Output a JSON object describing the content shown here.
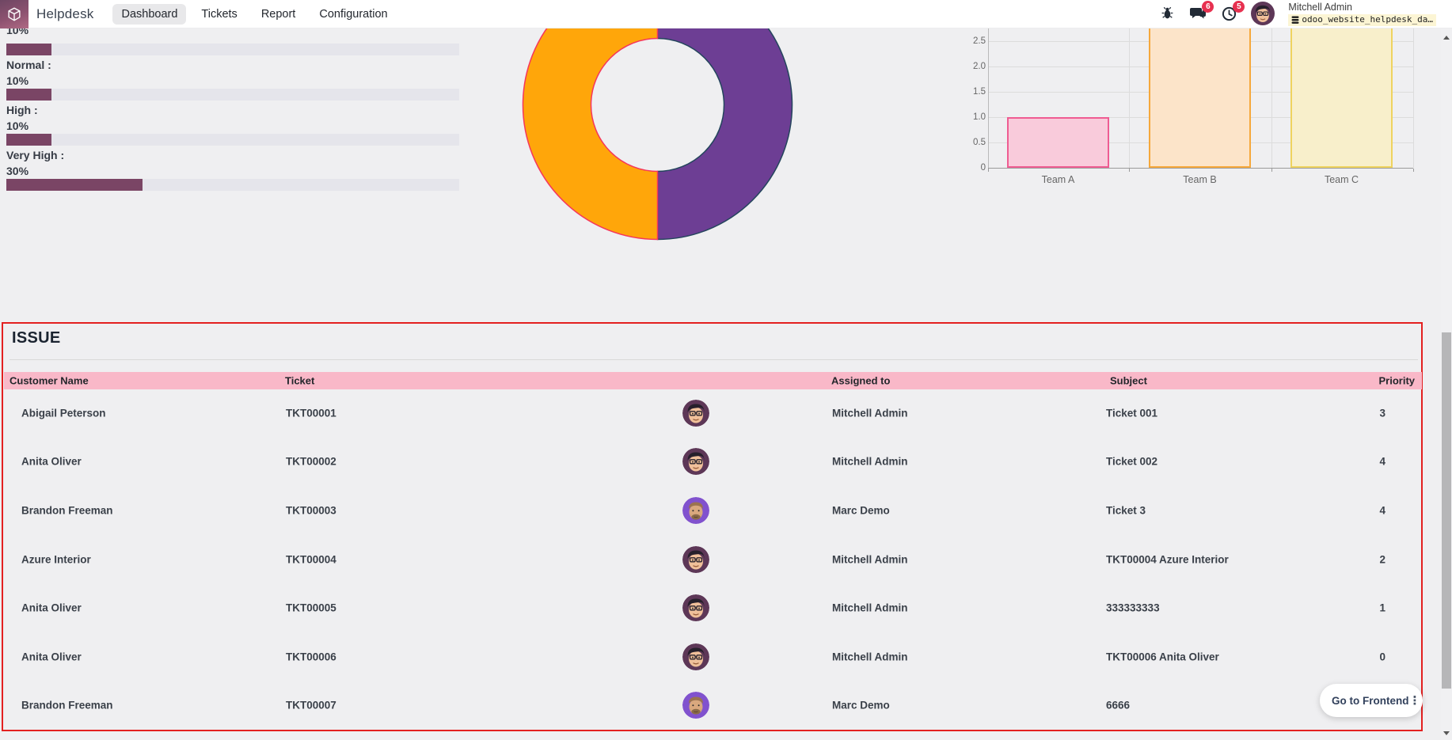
{
  "navbar": {
    "app_name": "Helpdesk",
    "menu": [
      {
        "label": "Dashboard"
      },
      {
        "label": "Tickets"
      },
      {
        "label": "Report"
      },
      {
        "label": "Configuration"
      }
    ],
    "messages_badge": "6",
    "activities_badge": "5",
    "user_name": "Mitchell Admin",
    "database_name": "odoo_website_helpdesk_da…"
  },
  "priority_panel": {
    "items": [
      {
        "label": "",
        "value": "10%",
        "pct": 10
      },
      {
        "label": "Normal :",
        "value": "10%",
        "pct": 10
      },
      {
        "label": "High :",
        "value": "10%",
        "pct": 10
      },
      {
        "label": "Very High :",
        "value": "30%",
        "pct": 30
      }
    ]
  },
  "chart_data": [
    {
      "type": "pie",
      "subtype": "doughnut",
      "title": "",
      "values": [
        50,
        50
      ],
      "labels": [
        "",
        ""
      ],
      "colors": [
        "#6d3e94",
        "#ffa60a"
      ],
      "border_colors": [
        "#24455d",
        "#f5365c"
      ],
      "start_angle_deg": 0,
      "legend": "none"
    },
    {
      "type": "bar",
      "title": "",
      "categories": [
        "Team A",
        "Team B",
        "Team C"
      ],
      "values": [
        1,
        3,
        3
      ],
      "bar_colors": [
        "#f9cbdb",
        "#fce4c9",
        "#f8efcb"
      ],
      "bar_borders": [
        "#ef5c92",
        "#f6a83b",
        "#efd35f"
      ],
      "yticks": [
        "0",
        "0.5",
        "1.0",
        "1.5",
        "2.0",
        "2.5"
      ],
      "ylim_visible": [
        0,
        2.75
      ],
      "grid": true,
      "xlabel": "",
      "ylabel": ""
    }
  ],
  "issue_table": {
    "title": "ISSUE",
    "headers": {
      "customer": "Customer Name",
      "ticket": "Ticket",
      "assigned": "Assigned to",
      "subject": "Subject",
      "priority": "Priority"
    },
    "rows": [
      {
        "customer": "Abigail Peterson",
        "ticket": "TKT00001",
        "assigned": "Mitchell Admin",
        "subject": "Ticket 001",
        "priority": "3",
        "avatar": "mitchell"
      },
      {
        "customer": "Anita Oliver",
        "ticket": "TKT00002",
        "assigned": "Mitchell Admin",
        "subject": "Ticket 002",
        "priority": "4",
        "avatar": "mitchell"
      },
      {
        "customer": "Brandon Freeman",
        "ticket": "TKT00003",
        "assigned": "Marc Demo",
        "subject": "Ticket 3",
        "priority": "4",
        "avatar": "marc"
      },
      {
        "customer": "Azure Interior",
        "ticket": "TKT00004",
        "assigned": "Mitchell Admin",
        "subject": "TKT00004 Azure Interior",
        "priority": "2",
        "avatar": "mitchell"
      },
      {
        "customer": "Anita Oliver",
        "ticket": "TKT00005",
        "assigned": "Mitchell Admin",
        "subject": "333333333",
        "priority": "1",
        "avatar": "mitchell"
      },
      {
        "customer": "Anita Oliver",
        "ticket": "TKT00006",
        "assigned": "Mitchell Admin",
        "subject": "TKT00006 Anita Oliver",
        "priority": "0",
        "avatar": "mitchell"
      },
      {
        "customer": "Brandon Freeman",
        "ticket": "TKT00007",
        "assigned": "Marc Demo",
        "subject": "6666",
        "priority": "",
        "avatar": "marc"
      }
    ]
  },
  "frontend_button": {
    "label": "Go to Frontend"
  }
}
